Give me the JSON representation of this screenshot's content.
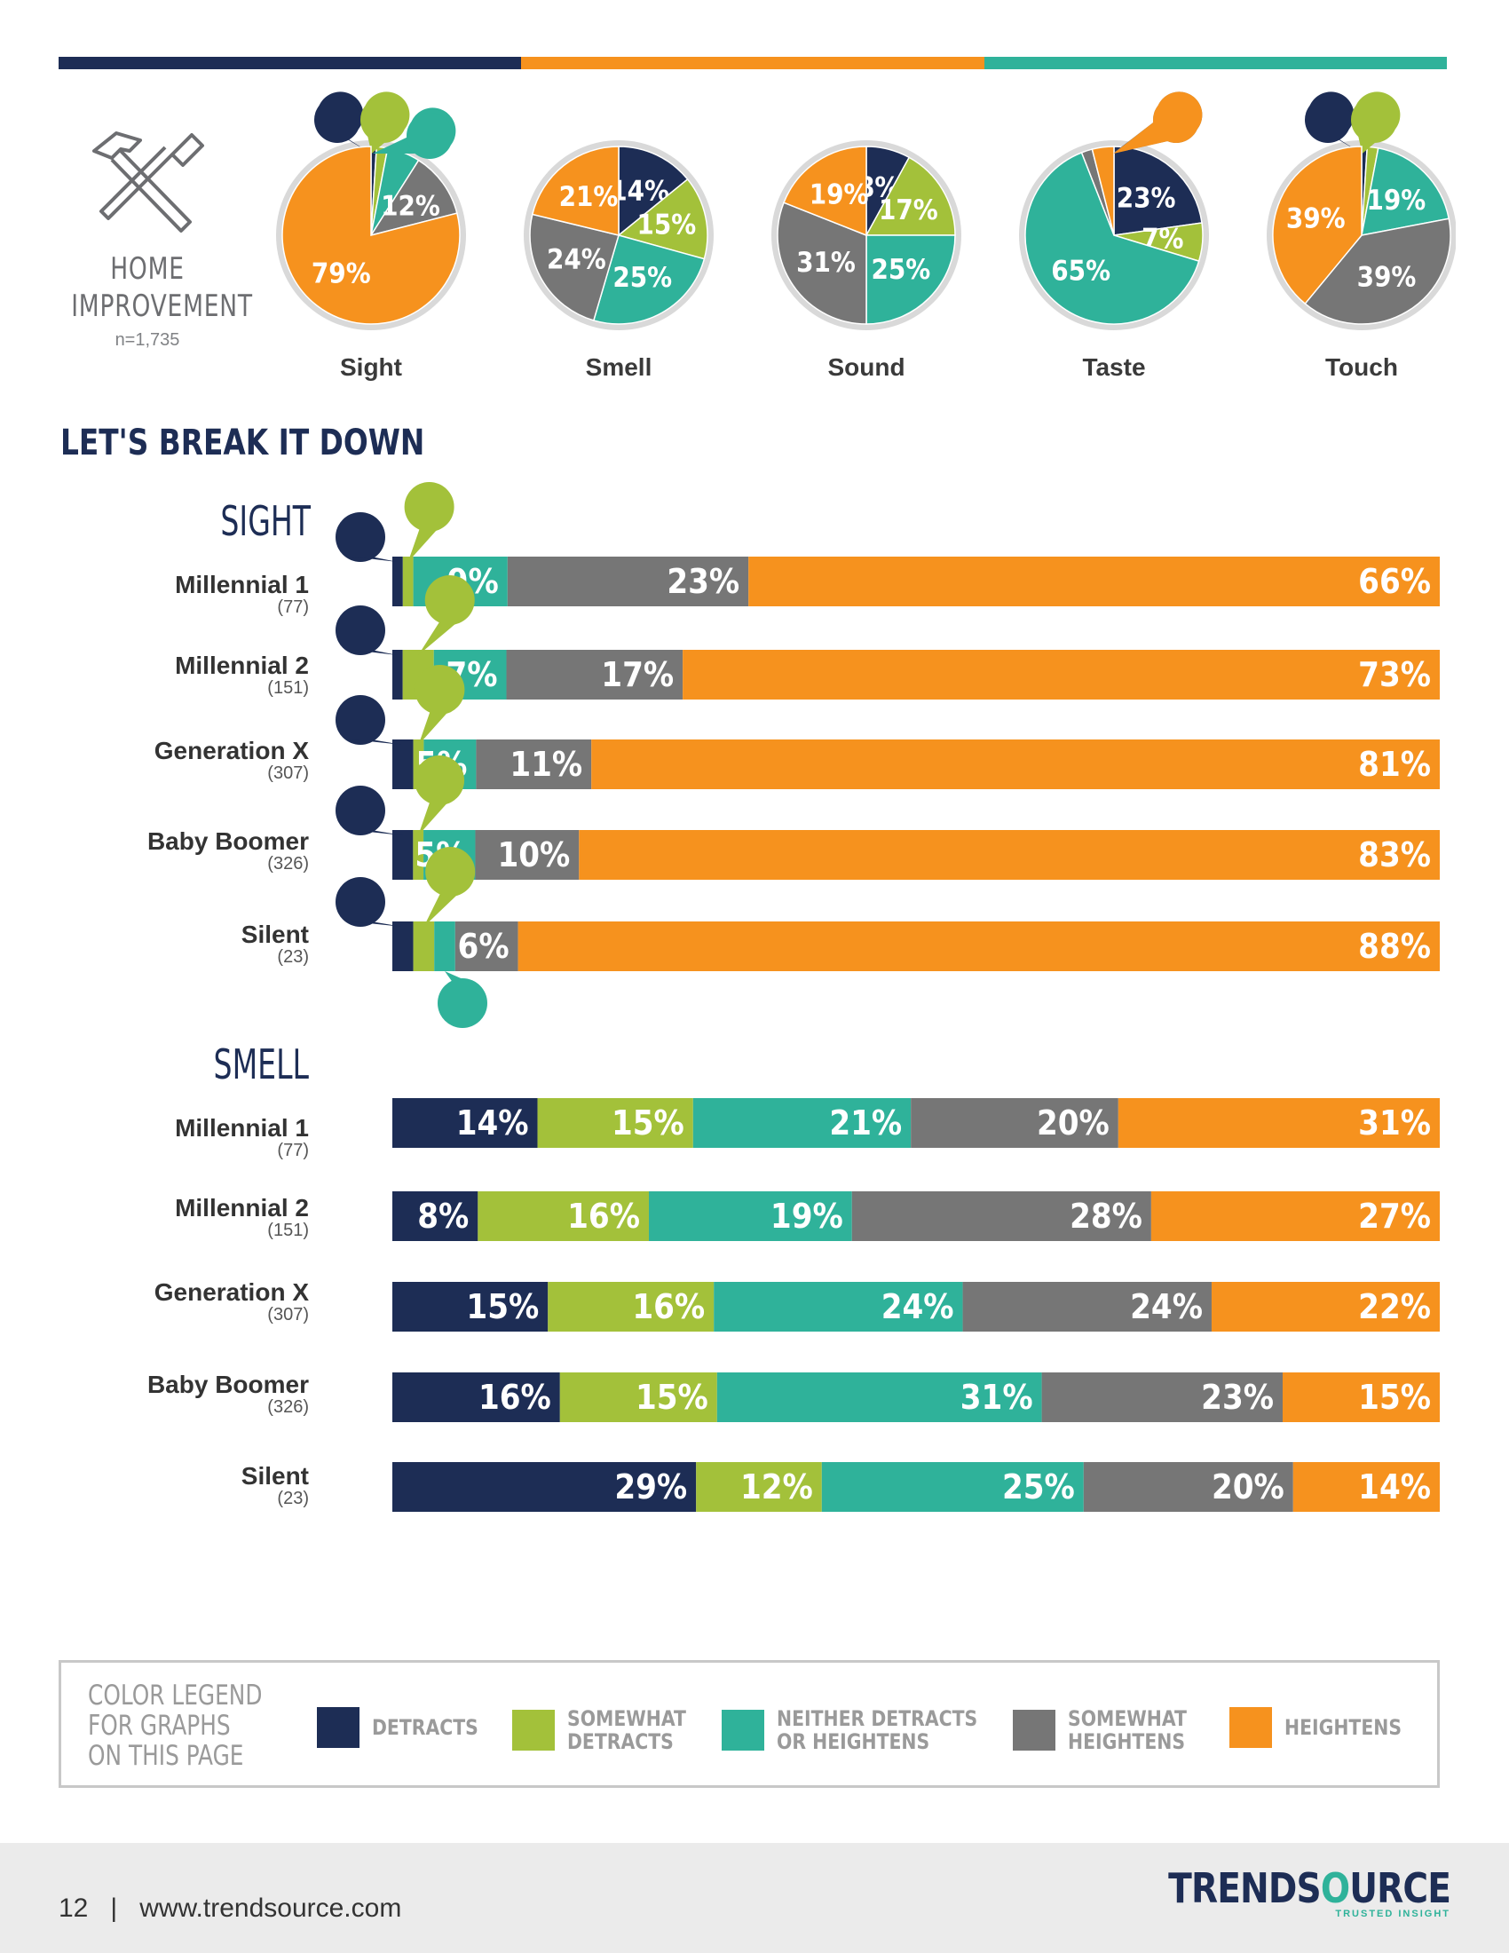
{
  "colors": {
    "detracts": "#1d2d55",
    "somewhat_detracts": "#a3c13a",
    "neither": "#2fb29a",
    "somewhat_heightens": "#767676",
    "heightens": "#f6921e"
  },
  "header": {
    "category": "HOME IMPROVEMENT",
    "n": "n=1,735",
    "icon": "hammer-screwdriver-icon"
  },
  "section_title": "LET'S BREAK IT DOWN",
  "sight_title": "SIGHT",
  "smell_title": "SMELL",
  "groups": [
    {
      "name": "Millennial 1",
      "n": "(77)"
    },
    {
      "name": "Millennial 2",
      "n": "(151)"
    },
    {
      "name": "Generation X",
      "n": "(307)"
    },
    {
      "name": "Baby Boomer",
      "n": "(326)"
    },
    {
      "name": "Silent",
      "n": "(23)"
    }
  ],
  "legend": {
    "title": "COLOR LEGEND\nFOR GRAPHS\nON THIS PAGE",
    "items": [
      {
        "label": "DETRACTS",
        "key": "detracts"
      },
      {
        "label": "SOMEWHAT\nDETRACTS",
        "key": "somewhat_detracts"
      },
      {
        "label": "NEITHER DETRACTS\nOR HEIGHTENS",
        "key": "neither"
      },
      {
        "label": "SOMEWHAT\nHEIGHTENS",
        "key": "somewhat_heightens"
      },
      {
        "label": "HEIGHTENS",
        "key": "heightens"
      }
    ]
  },
  "footer": {
    "page": "12",
    "url": "www.trendsource.com",
    "brand_left": "TRENDS",
    "brand_o": "O",
    "brand_right": "URCE",
    "tagline": "TRUSTED INSIGHT"
  },
  "chart_data": [
    {
      "type": "pie",
      "title": "",
      "categories": [
        "Detracts",
        "Somewhat Detracts",
        "Neither Detracts or Heightens",
        "Somewhat Heightens",
        "Heightens"
      ],
      "pies": [
        {
          "label": "Sight",
          "values": [
            1,
            2,
            6,
            12,
            79
          ]
        },
        {
          "label": "Smell",
          "values": [
            14,
            15,
            25,
            24,
            21
          ]
        },
        {
          "label": "Sound",
          "values": [
            8,
            17,
            25,
            31,
            19
          ]
        },
        {
          "label": "Taste",
          "values": [
            23,
            7,
            65,
            2,
            4
          ]
        },
        {
          "label": "Touch",
          "values": [
            1,
            2,
            19,
            39,
            39
          ]
        }
      ]
    },
    {
      "type": "bar",
      "orientation": "horizontal",
      "stacked": true,
      "title": "SIGHT",
      "categories": [
        "Millennial 1",
        "Millennial 2",
        "Generation X",
        "Baby Boomer",
        "Silent"
      ],
      "series": [
        {
          "name": "DETRACTS",
          "values": [
            1,
            1,
            2,
            2,
            2
          ]
        },
        {
          "name": "SOMEWHAT DETRACTS",
          "values": [
            1,
            3,
            1,
            1,
            2
          ]
        },
        {
          "name": "NEITHER DETRACTS OR HEIGHTENS",
          "values": [
            9,
            7,
            5,
            5,
            2
          ]
        },
        {
          "name": "SOMEWHAT HEIGHTENS",
          "values": [
            23,
            17,
            11,
            10,
            6
          ]
        },
        {
          "name": "HEIGHTENS",
          "values": [
            66,
            73,
            81,
            83,
            88
          ]
        }
      ]
    },
    {
      "type": "bar",
      "orientation": "horizontal",
      "stacked": true,
      "title": "SMELL",
      "categories": [
        "Millennial 1",
        "Millennial 2",
        "Generation X",
        "Baby Boomer",
        "Silent"
      ],
      "series": [
        {
          "name": "DETRACTS",
          "values": [
            14,
            8,
            15,
            16,
            29
          ]
        },
        {
          "name": "SOMEWHAT DETRACTS",
          "values": [
            15,
            16,
            16,
            15,
            12
          ]
        },
        {
          "name": "NEITHER DETRACTS OR HEIGHTENS",
          "values": [
            21,
            19,
            24,
            31,
            25
          ]
        },
        {
          "name": "SOMEWHAT HEIGHTENS",
          "values": [
            20,
            28,
            24,
            23,
            20
          ]
        },
        {
          "name": "HEIGHTENS",
          "values": [
            31,
            27,
            22,
            15,
            14
          ]
        }
      ]
    }
  ]
}
